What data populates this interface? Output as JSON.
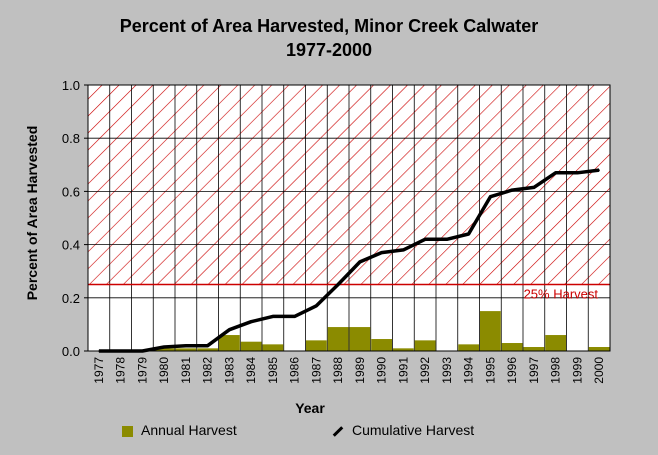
{
  "chart_data": {
    "type": "bar",
    "title": "Percent of Area Harvested, Minor Creek Calwater",
    "subtitle": "1977-2000",
    "xlabel": "Year",
    "ylabel": "Percent of Area Harvested",
    "ylim": [
      0,
      1.0
    ],
    "yticks": [
      "0.0",
      "0.2",
      "0.4",
      "0.6",
      "0.8",
      "1.0"
    ],
    "categories": [
      "1977",
      "1978",
      "1979",
      "1980",
      "1981",
      "1982",
      "1983",
      "1984",
      "1985",
      "1986",
      "1987",
      "1988",
      "1989",
      "1990",
      "1991",
      "1992",
      "1993",
      "1994",
      "1995",
      "1996",
      "1997",
      "1998",
      "1999",
      "2000"
    ],
    "series": [
      {
        "name": "Annual Harvest",
        "kind": "bar",
        "color": "#8b8b00",
        "values": [
          0,
          0,
          0,
          0.01,
          0.01,
          0.01,
          0.06,
          0.035,
          0.025,
          0,
          0.04,
          0.09,
          0.09,
          0.045,
          0.01,
          0.04,
          0,
          0.025,
          0.15,
          0.03,
          0.015,
          0.06,
          0,
          0.015
        ]
      },
      {
        "name": "Cumulative Harvest",
        "kind": "line",
        "color": "#000000",
        "values": [
          0,
          0,
          0,
          0.015,
          0.02,
          0.02,
          0.08,
          0.11,
          0.13,
          0.13,
          0.17,
          0.25,
          0.335,
          0.37,
          0.38,
          0.42,
          0.42,
          0.44,
          0.58,
          0.605,
          0.615,
          0.67,
          0.67,
          0.68
        ]
      }
    ],
    "threshold": {
      "value": 0.25,
      "label": "25% Harvest",
      "color": "#cc0000"
    },
    "grid": true,
    "legend_position": "bottom"
  }
}
